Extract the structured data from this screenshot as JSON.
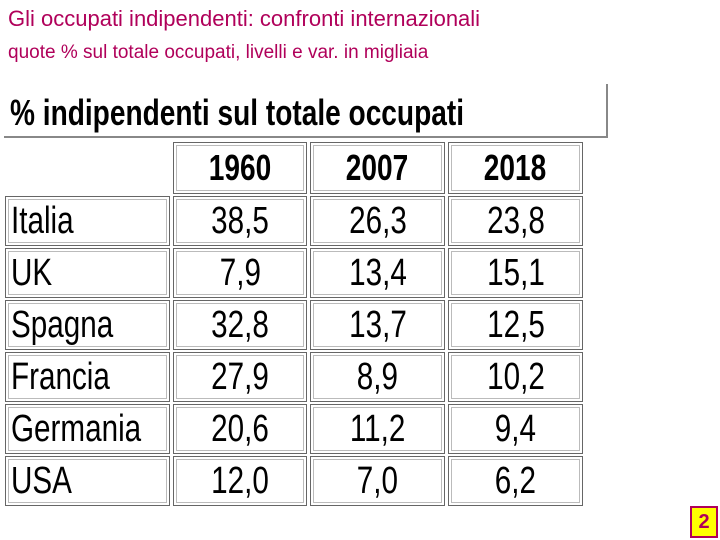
{
  "header": {
    "title": "Gli occupati indipendenti: confronti internazionali",
    "subtitle": "quote % sul totale occupati, livelli e var. in migliaia"
  },
  "table": {
    "caption": "% indipendenti sul totale occupati",
    "columns": [
      "1960",
      "2007",
      "2018"
    ],
    "rows": [
      [
        "Italia",
        "38,5",
        "26,3",
        "23,8"
      ],
      [
        "UK",
        "7,9",
        "13,4",
        "15,1"
      ],
      [
        "Spagna",
        "32,8",
        "13,7",
        "12,5"
      ],
      [
        "Francia",
        "27,9",
        "8,9",
        "10,2"
      ],
      [
        "Germania",
        "20,6",
        "11,2",
        "9,4"
      ],
      [
        "USA",
        "12,0",
        "7,0",
        "6,2"
      ]
    ]
  },
  "page_number": "2"
}
